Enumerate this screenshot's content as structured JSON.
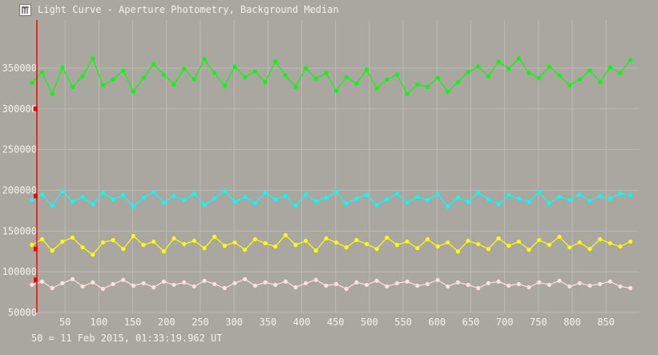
{
  "window": {
    "title": "Light Curve - Aperture Photometry, Background Median",
    "icon": "light-curve-app-icon"
  },
  "footer": {
    "note": "50 = 11 Feb 2015, 01:33:19.962 UT"
  },
  "chart_data": {
    "type": "line",
    "title": "Light Curve - Aperture Photometry, Background Median",
    "xlabel": "",
    "ylabel": "",
    "xlim": [
      0,
      898
    ],
    "ylim": [
      50000,
      409000
    ],
    "grid": true,
    "xticks": [
      "50",
      "100",
      "150",
      "200",
      "250",
      "300",
      "350",
      "400",
      "450",
      "500",
      "550",
      "600",
      "650",
      "700",
      "750",
      "800",
      "850"
    ],
    "yticks": [
      "50000",
      "100000",
      "150000",
      "200000",
      "250000",
      "300000",
      "350000"
    ],
    "cursor_x": 8,
    "x_start": 1,
    "x_step": 15,
    "series": [
      {
        "name": "green",
        "color": "#00ff00",
        "marker_value": 300000,
        "values": [
          332000,
          345000,
          318000,
          351000,
          327000,
          340000,
          362000,
          329000,
          336000,
          347000,
          321000,
          338000,
          355000,
          342000,
          330000,
          349000,
          336000,
          361000,
          344000,
          328000,
          352000,
          339000,
          346000,
          333000,
          358000,
          341000,
          327000,
          350000,
          337000,
          344000,
          322000,
          339000,
          331000,
          348000,
          325000,
          336000,
          342000,
          318000,
          330000,
          327000,
          338000,
          321000,
          333000,
          345000,
          352000,
          340000,
          358000,
          349000,
          362000,
          344000,
          338000,
          352000,
          341000,
          329000,
          336000,
          347000,
          333000,
          351000,
          344000,
          360000
        ]
      },
      {
        "name": "cyan",
        "color": "#00ffff",
        "marker_value": 193000,
        "values": [
          188000,
          195000,
          181000,
          199000,
          186000,
          192000,
          183000,
          197000,
          189000,
          194000,
          180000,
          191000,
          198000,
          185000,
          193000,
          188000,
          196000,
          182000,
          190000,
          199000,
          186000,
          192000,
          184000,
          197000,
          189000,
          193000,
          181000,
          195000,
          187000,
          191000,
          198000,
          184000,
          190000,
          194000,
          182000,
          189000,
          196000,
          185000,
          192000,
          188000,
          195000,
          180000,
          191000,
          186000,
          197000,
          189000,
          183000,
          194000,
          190000,
          186000,
          198000,
          184000,
          192000,
          188000,
          195000,
          187000,
          193000,
          190000,
          196000,
          194000
        ]
      },
      {
        "name": "yellow",
        "color": "#ffff00",
        "marker_value": 128000,
        "values": [
          133000,
          140000,
          126000,
          137000,
          142000,
          130000,
          121000,
          136000,
          139000,
          128000,
          144000,
          133000,
          137000,
          125000,
          141000,
          134000,
          138000,
          129000,
          143000,
          132000,
          136000,
          127000,
          140000,
          135000,
          131000,
          145000,
          133000,
          138000,
          126000,
          141000,
          136000,
          130000,
          139000,
          134000,
          128000,
          142000,
          133000,
          137000,
          129000,
          140000,
          131000,
          136000,
          125000,
          138000,
          134000,
          128000,
          141000,
          132000,
          137000,
          127000,
          139000,
          133000,
          143000,
          130000,
          136000,
          128000,
          140000,
          135000,
          131000,
          137000
        ]
      },
      {
        "name": "pink",
        "color": "#ffe0dc",
        "marker_value": 90000,
        "values": [
          84000,
          88000,
          80000,
          86000,
          91000,
          82000,
          87000,
          79000,
          85000,
          90000,
          83000,
          86000,
          81000,
          88000,
          84000,
          87000,
          82000,
          89000,
          85000,
          80000,
          86000,
          91000,
          83000,
          87000,
          84000,
          88000,
          81000,
          86000,
          90000,
          83000,
          85000,
          79000,
          87000,
          84000,
          89000,
          82000,
          86000,
          88000,
          83000,
          85000,
          90000,
          82000,
          87000,
          84000,
          80000,
          86000,
          88000,
          83000,
          85000,
          81000,
          87000,
          84000,
          89000,
          82000,
          86000,
          83000,
          85000,
          88000,
          82000,
          80000
        ]
      }
    ]
  }
}
